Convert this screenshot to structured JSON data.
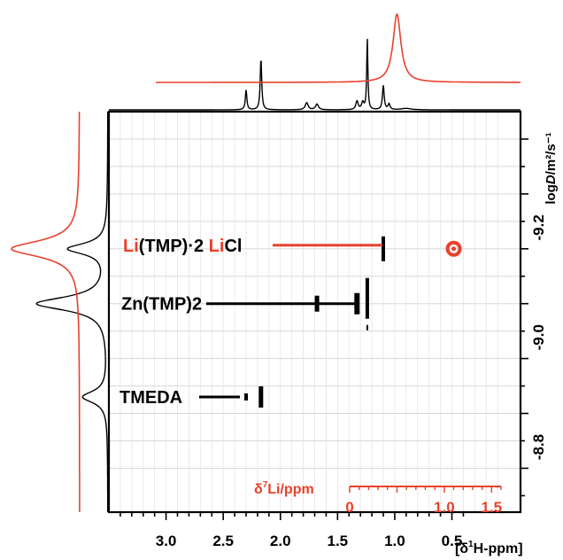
{
  "chart_data": {
    "type": "scatter",
    "title": "",
    "x_axis": {
      "label_prefix": "[δ",
      "label_sup": "1",
      "label_suffix": "H-ppm]",
      "range": [
        3.5,
        -0.1
      ],
      "ticks": [
        "3.0",
        "2.5",
        "2.0",
        "1.5",
        "1.0",
        "0.5"
      ],
      "tick_values": [
        3.0,
        2.5,
        2.0,
        1.5,
        1.0,
        0.5
      ]
    },
    "secondary_x_axis": {
      "label_prefix": "δ",
      "label_sup": "7",
      "label_suffix": "Li/ppm",
      "color": "#e8412c",
      "ticks": [
        "1.5",
        "1.0",
        "0"
      ],
      "tick_values": [
        1.5,
        1.0,
        0.0
      ]
    },
    "y_axis": {
      "label_prefix": "log",
      "label_italic": "D",
      "label_suffix": "/m²/s⁻¹",
      "range": [
        -9.35,
        -8.62
      ],
      "ticks": [
        "-9.2",
        "-9.0",
        "-8.8"
      ],
      "tick_values": [
        -9.2,
        -9.0,
        -8.8
      ]
    },
    "grid": true,
    "series": [
      {
        "species": "Li(TMP)·2 LiCl",
        "label_parts": [
          {
            "text": "Li",
            "color": "#e8412c"
          },
          {
            "text": "(TMP)·2 ",
            "color": "#000000"
          },
          {
            "text": "Li",
            "color": "#e8412c"
          },
          {
            "text": "Cl",
            "color": "#000000"
          }
        ],
        "line_color": "#e8412c",
        "logD": -9.1,
        "h1_peaks": [
          1.1
        ],
        "li7_peaks": [
          1.1
        ]
      },
      {
        "species": "Zn(TMP)2",
        "label_parts": [
          {
            "text": "Zn(TMP)2",
            "color": "#000000"
          }
        ],
        "line_color": "#000000",
        "logD": -9.0,
        "h1_peaks": [
          1.68,
          1.33,
          1.24
        ]
      },
      {
        "species": "TMEDA",
        "label_parts": [
          {
            "text": "TMEDA",
            "color": "#000000"
          }
        ],
        "line_color": "#000000",
        "logD": -8.83,
        "h1_peaks": [
          2.3,
          2.17
        ]
      }
    ],
    "projections": {
      "h1_spectrum_color": "#000000",
      "li7_spectrum_color": "#e8412c",
      "diffusion_projection_colors": [
        "#000000",
        "#e8412c"
      ]
    }
  }
}
